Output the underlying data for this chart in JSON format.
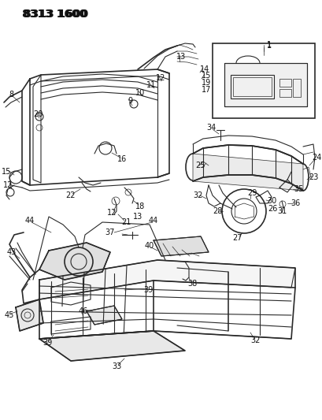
{
  "title": "8313 1600",
  "bg_color": "#ffffff",
  "line_color": "#2a2a2a",
  "label_color": "#111111",
  "title_fontsize": 10,
  "label_fontsize": 7,
  "fig_w": 4.1,
  "fig_h": 5.33
}
